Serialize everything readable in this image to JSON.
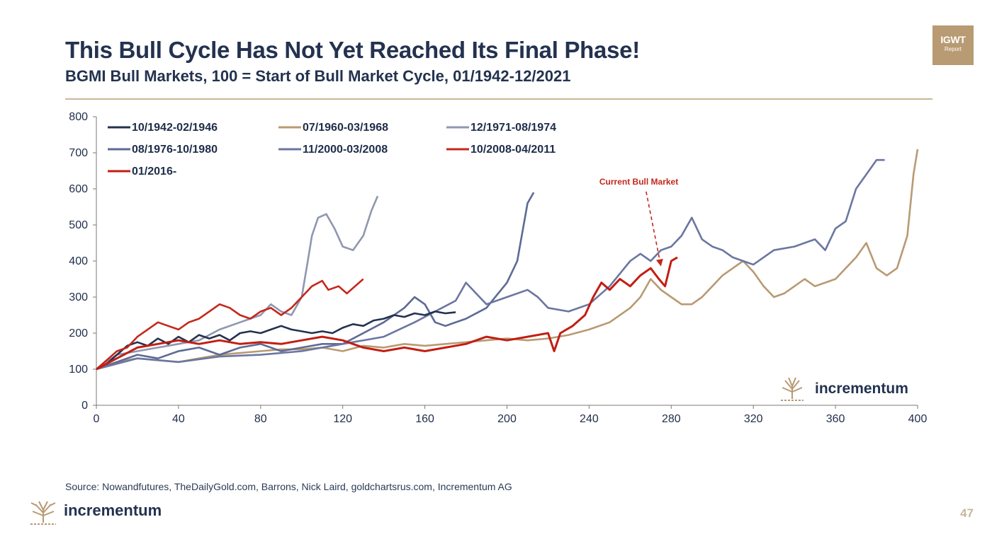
{
  "header": {
    "title": "This Bull Cycle Has Not Yet Reached Its Final Phase!",
    "subtitle": "BGMI Bull Markets, 100 = Start of Bull Market Cycle, 01/1942-12/2021"
  },
  "badge": {
    "line1": "IGWT",
    "line2": "Report"
  },
  "brand": {
    "name": "incrementum"
  },
  "footer": {
    "source": "Source: Nowandfutures, TheDailyGold.com, Barrons, Nick Laird, goldchartsrus.com, Incrementum AG",
    "page_number": "47"
  },
  "colors": {
    "brand_tan": "#b89a73",
    "title_navy": "#23324f",
    "current_red": "#c0281c"
  },
  "chart_data": {
    "type": "line",
    "title": "",
    "xlabel": "",
    "ylabel": "",
    "xlim": [
      0,
      400
    ],
    "ylim": [
      0,
      800
    ],
    "x_ticks": [
      0,
      40,
      80,
      120,
      160,
      200,
      240,
      280,
      320,
      360,
      400
    ],
    "y_ticks": [
      0,
      100,
      200,
      300,
      400,
      500,
      600,
      700,
      800
    ],
    "grid": false,
    "legend_position": "top-left",
    "annotation": {
      "text": "Current Bull Market",
      "x": 245,
      "y": 612,
      "arrow_to": [
        275,
        385
      ]
    },
    "series": [
      {
        "name": "10/1942-02/1946",
        "color": "#24324f",
        "points": [
          [
            0,
            100
          ],
          [
            5,
            115
          ],
          [
            10,
            140
          ],
          [
            15,
            165
          ],
          [
            20,
            175
          ],
          [
            25,
            165
          ],
          [
            30,
            185
          ],
          [
            35,
            170
          ],
          [
            40,
            190
          ],
          [
            45,
            175
          ],
          [
            50,
            195
          ],
          [
            55,
            185
          ],
          [
            60,
            195
          ],
          [
            65,
            180
          ],
          [
            70,
            200
          ],
          [
            75,
            205
          ],
          [
            80,
            200
          ],
          [
            85,
            210
          ],
          [
            90,
            220
          ],
          [
            95,
            210
          ],
          [
            100,
            205
          ],
          [
            105,
            200
          ],
          [
            110,
            205
          ],
          [
            115,
            200
          ],
          [
            120,
            215
          ],
          [
            125,
            225
          ],
          [
            130,
            220
          ],
          [
            135,
            235
          ],
          [
            140,
            240
          ],
          [
            145,
            250
          ],
          [
            150,
            245
          ],
          [
            155,
            255
          ],
          [
            160,
            250
          ],
          [
            165,
            260
          ],
          [
            170,
            255
          ],
          [
            175,
            258
          ]
        ]
      },
      {
        "name": "07/1960-03/1968",
        "color": "#b89a73",
        "points": [
          [
            0,
            100
          ],
          [
            10,
            120
          ],
          [
            20,
            130
          ],
          [
            30,
            125
          ],
          [
            40,
            120
          ],
          [
            50,
            130
          ],
          [
            60,
            140
          ],
          [
            70,
            145
          ],
          [
            80,
            150
          ],
          [
            90,
            155
          ],
          [
            100,
            155
          ],
          [
            110,
            160
          ],
          [
            120,
            150
          ],
          [
            130,
            165
          ],
          [
            140,
            160
          ],
          [
            150,
            170
          ],
          [
            160,
            165
          ],
          [
            170,
            170
          ],
          [
            180,
            175
          ],
          [
            190,
            180
          ],
          [
            200,
            185
          ],
          [
            210,
            180
          ],
          [
            220,
            185
          ],
          [
            230,
            195
          ],
          [
            240,
            210
          ],
          [
            250,
            230
          ],
          [
            260,
            270
          ],
          [
            265,
            300
          ],
          [
            270,
            350
          ],
          [
            275,
            320
          ],
          [
            280,
            300
          ],
          [
            285,
            280
          ],
          [
            290,
            280
          ],
          [
            295,
            300
          ],
          [
            300,
            330
          ],
          [
            305,
            360
          ],
          [
            310,
            380
          ],
          [
            315,
            400
          ],
          [
            320,
            370
          ],
          [
            325,
            330
          ],
          [
            330,
            300
          ],
          [
            335,
            310
          ],
          [
            340,
            330
          ],
          [
            345,
            350
          ],
          [
            350,
            330
          ],
          [
            355,
            340
          ],
          [
            360,
            350
          ],
          [
            365,
            380
          ],
          [
            370,
            410
          ],
          [
            375,
            450
          ],
          [
            380,
            380
          ],
          [
            385,
            360
          ],
          [
            390,
            380
          ],
          [
            395,
            470
          ],
          [
            398,
            640
          ],
          [
            400,
            710
          ]
        ]
      },
      {
        "name": "12/1971-08/1974",
        "color": "#8f97b0",
        "points": [
          [
            0,
            100
          ],
          [
            10,
            140
          ],
          [
            20,
            150
          ],
          [
            30,
            160
          ],
          [
            40,
            170
          ],
          [
            50,
            180
          ],
          [
            60,
            210
          ],
          [
            70,
            230
          ],
          [
            80,
            250
          ],
          [
            85,
            280
          ],
          [
            90,
            260
          ],
          [
            95,
            250
          ],
          [
            100,
            300
          ],
          [
            103,
            400
          ],
          [
            105,
            470
          ],
          [
            108,
            520
          ],
          [
            112,
            530
          ],
          [
            116,
            490
          ],
          [
            120,
            440
          ],
          [
            125,
            430
          ],
          [
            130,
            470
          ],
          [
            134,
            540
          ],
          [
            137,
            580
          ]
        ]
      },
      {
        "name": "08/1976-10/1980",
        "color": "#5d6a94",
        "points": [
          [
            0,
            100
          ],
          [
            10,
            120
          ],
          [
            20,
            140
          ],
          [
            30,
            130
          ],
          [
            40,
            150
          ],
          [
            50,
            160
          ],
          [
            60,
            140
          ],
          [
            70,
            160
          ],
          [
            80,
            170
          ],
          [
            90,
            150
          ],
          [
            100,
            160
          ],
          [
            110,
            170
          ],
          [
            120,
            170
          ],
          [
            130,
            200
          ],
          [
            140,
            230
          ],
          [
            150,
            270
          ],
          [
            155,
            300
          ],
          [
            160,
            280
          ],
          [
            165,
            230
          ],
          [
            170,
            220
          ],
          [
            180,
            240
          ],
          [
            190,
            270
          ],
          [
            200,
            340
          ],
          [
            205,
            400
          ],
          [
            210,
            560
          ],
          [
            213,
            590
          ]
        ]
      },
      {
        "name": "11/2000-03/2008",
        "color": "#6b76a0",
        "points": [
          [
            0,
            100
          ],
          [
            20,
            130
          ],
          [
            40,
            120
          ],
          [
            60,
            135
          ],
          [
            80,
            140
          ],
          [
            100,
            150
          ],
          [
            120,
            170
          ],
          [
            140,
            190
          ],
          [
            155,
            230
          ],
          [
            165,
            260
          ],
          [
            175,
            290
          ],
          [
            180,
            340
          ],
          [
            185,
            310
          ],
          [
            190,
            280
          ],
          [
            200,
            300
          ],
          [
            210,
            320
          ],
          [
            215,
            300
          ],
          [
            220,
            270
          ],
          [
            230,
            260
          ],
          [
            240,
            280
          ],
          [
            250,
            330
          ],
          [
            260,
            400
          ],
          [
            265,
            420
          ],
          [
            270,
            400
          ],
          [
            275,
            430
          ],
          [
            280,
            440
          ],
          [
            285,
            470
          ],
          [
            290,
            520
          ],
          [
            295,
            460
          ],
          [
            300,
            440
          ],
          [
            305,
            430
          ],
          [
            310,
            410
          ],
          [
            315,
            400
          ],
          [
            320,
            390
          ],
          [
            330,
            430
          ],
          [
            340,
            440
          ],
          [
            350,
            460
          ],
          [
            355,
            430
          ],
          [
            360,
            490
          ],
          [
            365,
            510
          ],
          [
            370,
            600
          ],
          [
            375,
            640
          ],
          [
            380,
            680
          ],
          [
            384,
            680
          ]
        ]
      },
      {
        "name": "10/2008-04/2011",
        "color": "#c4281c",
        "points": [
          [
            0,
            100
          ],
          [
            5,
            125
          ],
          [
            10,
            150
          ],
          [
            15,
            160
          ],
          [
            20,
            190
          ],
          [
            25,
            210
          ],
          [
            30,
            230
          ],
          [
            35,
            220
          ],
          [
            40,
            210
          ],
          [
            45,
            230
          ],
          [
            50,
            240
          ],
          [
            55,
            260
          ],
          [
            60,
            280
          ],
          [
            65,
            270
          ],
          [
            70,
            250
          ],
          [
            75,
            240
          ],
          [
            80,
            260
          ],
          [
            85,
            270
          ],
          [
            90,
            250
          ],
          [
            95,
            270
          ],
          [
            100,
            300
          ],
          [
            105,
            330
          ],
          [
            110,
            345
          ],
          [
            113,
            320
          ],
          [
            118,
            330
          ],
          [
            122,
            310
          ],
          [
            126,
            330
          ],
          [
            130,
            350
          ]
        ]
      },
      {
        "name": "01/2016-",
        "color": "#c21e12",
        "points": [
          [
            0,
            100
          ],
          [
            10,
            130
          ],
          [
            20,
            160
          ],
          [
            30,
            170
          ],
          [
            40,
            180
          ],
          [
            50,
            170
          ],
          [
            60,
            180
          ],
          [
            70,
            170
          ],
          [
            80,
            175
          ],
          [
            90,
            170
          ],
          [
            100,
            180
          ],
          [
            110,
            190
          ],
          [
            120,
            180
          ],
          [
            130,
            160
          ],
          [
            140,
            150
          ],
          [
            150,
            160
          ],
          [
            160,
            150
          ],
          [
            170,
            160
          ],
          [
            180,
            170
          ],
          [
            190,
            190
          ],
          [
            200,
            180
          ],
          [
            210,
            190
          ],
          [
            220,
            200
          ],
          [
            223,
            150
          ],
          [
            226,
            200
          ],
          [
            232,
            220
          ],
          [
            238,
            250
          ],
          [
            242,
            300
          ],
          [
            246,
            340
          ],
          [
            250,
            320
          ],
          [
            255,
            350
          ],
          [
            260,
            330
          ],
          [
            265,
            360
          ],
          [
            270,
            380
          ],
          [
            274,
            350
          ],
          [
            277,
            330
          ],
          [
            280,
            400
          ],
          [
            283,
            410
          ]
        ]
      }
    ]
  }
}
